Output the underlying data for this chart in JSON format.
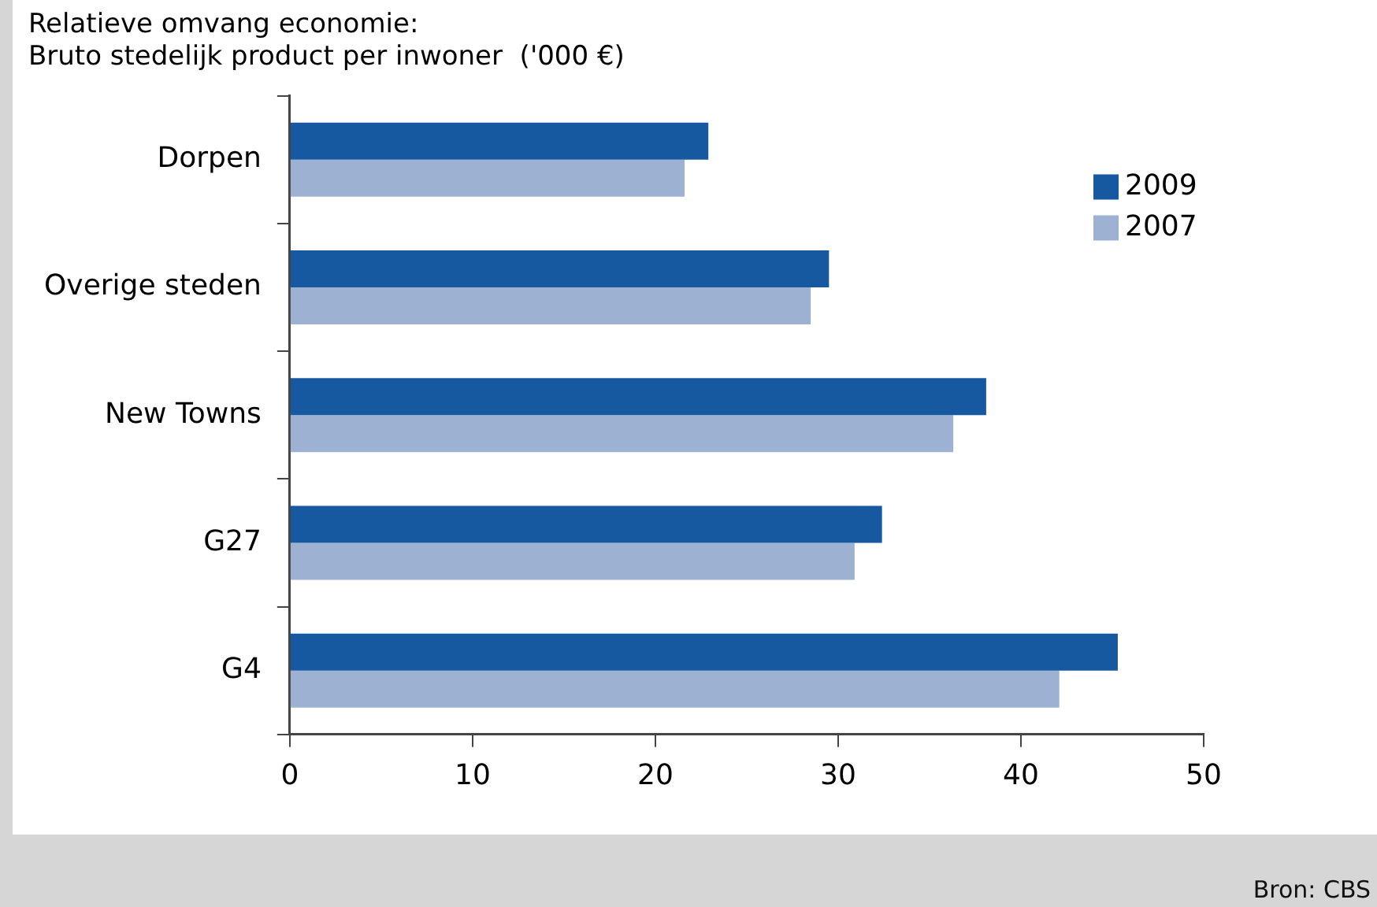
{
  "chart_data": {
    "type": "bar",
    "orientation": "horizontal",
    "title": "Relatieve omvang economie:",
    "subtitle": "Bruto stedelijk product per inwoner  ('000 €)",
    "categories": [
      "Dorpen",
      "Overige steden",
      "New Towns",
      "G27",
      "G4"
    ],
    "series": [
      {
        "name": "2009",
        "color": "#1659a0",
        "values": [
          22.9,
          29.5,
          38.1,
          32.4,
          45.3
        ]
      },
      {
        "name": "2007",
        "color": "#9db2d3",
        "values": [
          21.6,
          28.5,
          36.3,
          30.9,
          42.1
        ]
      }
    ],
    "xlim": [
      0,
      50
    ],
    "xticks": [
      0,
      10,
      20,
      30,
      40,
      50
    ],
    "grid": false,
    "legend": "top right",
    "annotations": [
      "Bron: CBS"
    ]
  }
}
